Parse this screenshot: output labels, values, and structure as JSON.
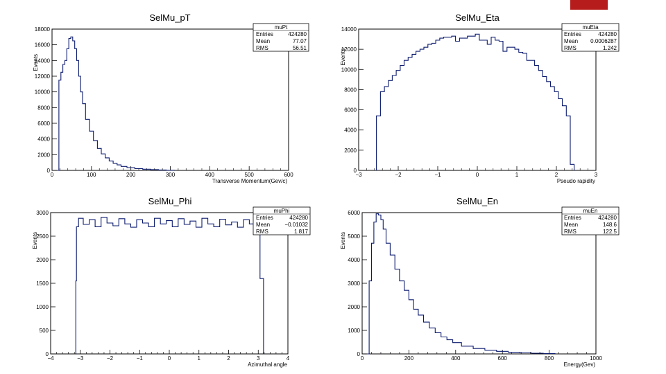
{
  "accent_color": "#b71c1c",
  "line_color": "#0b1a6e",
  "chart_data": [
    {
      "type": "bar",
      "histogram": true,
      "title": "SelMu_pT",
      "xlabel": "Transverse Momentum(Gev/c)",
      "ylabel": "Events",
      "xlim": [
        0,
        600
      ],
      "ylim": [
        0,
        18000
      ],
      "xticks": [
        0,
        100,
        200,
        300,
        400,
        500,
        600
      ],
      "xticklabels": [
        "0",
        "100",
        "200",
        "300",
        "400",
        "500",
        "600"
      ],
      "yticks": [
        0,
        2000,
        4000,
        6000,
        8000,
        10000,
        12000,
        14000,
        16000,
        18000
      ],
      "yticklabels": [
        "0",
        "2000",
        "4000",
        "6000",
        "8000",
        "10000",
        "12000",
        "14000",
        "16000",
        "18000"
      ],
      "stats": {
        "name": "muPt",
        "rows": [
          {
            "label": "Entries",
            "value": "424280"
          },
          {
            "label": "Mean",
            "value": "77.07"
          },
          {
            "label": "RMS",
            "value": "56.51"
          }
        ]
      },
      "x": [
        15,
        20,
        25,
        30,
        35,
        40,
        45,
        50,
        55,
        60,
        65,
        70,
        75,
        80,
        90,
        100,
        110,
        120,
        130,
        140,
        150,
        160,
        170,
        180,
        200,
        220,
        240,
        260,
        280,
        300
      ],
      "values": [
        0,
        11500,
        12500,
        13500,
        14000,
        15500,
        16800,
        17000,
        16500,
        15500,
        14000,
        12000,
        10000,
        8500,
        6500,
        5000,
        3800,
        2800,
        2100,
        1600,
        1200,
        900,
        700,
        500,
        350,
        220,
        150,
        100,
        50,
        20
      ]
    },
    {
      "type": "bar",
      "histogram": true,
      "title": "SelMu_Eta",
      "xlabel": "Pseudo rapidity",
      "ylabel": "Events",
      "xlim": [
        -3,
        3
      ],
      "ylim": [
        0,
        14000
      ],
      "xticks": [
        -3,
        -2,
        -1,
        0,
        1,
        2,
        3
      ],
      "xticklabels": [
        "−3",
        "−2",
        "−1",
        "0",
        "1",
        "2",
        "3"
      ],
      "yticks": [
        0,
        2000,
        4000,
        6000,
        8000,
        10000,
        12000,
        14000
      ],
      "yticklabels": [
        "0",
        "2000",
        "4000",
        "6000",
        "8000",
        "10000",
        "12000",
        "14000"
      ],
      "stats": {
        "name": "muEta",
        "rows": [
          {
            "label": "Entries",
            "value": "424280"
          },
          {
            "label": "Mean",
            "value": "0.0006287"
          },
          {
            "label": "RMS",
            "value": "1.242"
          }
        ]
      },
      "x": [
        -2.5,
        -2.4,
        -2.3,
        -2.2,
        -2.1,
        -2.0,
        -1.9,
        -1.8,
        -1.7,
        -1.6,
        -1.5,
        -1.4,
        -1.3,
        -1.2,
        -1.1,
        -1.0,
        -0.9,
        -0.8,
        -0.7,
        -0.6,
        -0.5,
        -0.4,
        -0.3,
        -0.2,
        -0.1,
        0.0,
        0.1,
        0.2,
        0.3,
        0.4,
        0.5,
        0.6,
        0.7,
        0.8,
        0.9,
        1.0,
        1.1,
        1.2,
        1.3,
        1.4,
        1.5,
        1.6,
        1.7,
        1.8,
        1.9,
        2.0,
        2.1,
        2.2,
        2.3,
        2.4
      ],
      "values": [
        5400,
        7800,
        8300,
        8900,
        9400,
        9900,
        10400,
        10900,
        11200,
        11500,
        11800,
        12000,
        12200,
        12500,
        12600,
        12900,
        13100,
        13200,
        13200,
        13300,
        12800,
        13100,
        13100,
        13300,
        13300,
        13500,
        12900,
        12900,
        12500,
        13200,
        12900,
        12800,
        11800,
        12200,
        12200,
        12000,
        11700,
        11600,
        10900,
        10900,
        10400,
        9900,
        9300,
        8800,
        8300,
        7800,
        7100,
        6400,
        5400,
        600
      ]
    },
    {
      "type": "bar",
      "histogram": true,
      "title": "SelMu_Phi",
      "xlabel": "Azimuthal angle",
      "ylabel": "Events",
      "xlim": [
        -4,
        4
      ],
      "ylim": [
        0,
        3000
      ],
      "xticks": [
        -4,
        -3,
        -2,
        -1,
        0,
        1,
        2,
        3,
        4
      ],
      "xticklabels": [
        "−4",
        "−3",
        "−2",
        "−1",
        "0",
        "1",
        "2",
        "3",
        "4"
      ],
      "yticks": [
        0,
        500,
        1000,
        1500,
        2000,
        2500,
        3000
      ],
      "yticklabels": [
        "0",
        "500",
        "1000",
        "1500",
        "2000",
        "2500",
        "3000"
      ],
      "stats": {
        "name": "muPhi",
        "rows": [
          {
            "label": "Entries",
            "value": "424280"
          },
          {
            "label": "Mean",
            "value": "−0.01032"
          },
          {
            "label": "RMS",
            "value": "1.817"
          }
        ]
      },
      "x": [
        -3.14,
        -3.12,
        -3.0,
        -2.8,
        -2.6,
        -2.4,
        -2.2,
        -2.0,
        -1.8,
        -1.6,
        -1.4,
        -1.2,
        -1.0,
        -0.8,
        -0.6,
        -0.4,
        -0.2,
        0.0,
        0.2,
        0.4,
        0.6,
        0.8,
        1.0,
        1.2,
        1.4,
        1.6,
        1.8,
        2.0,
        2.2,
        2.4,
        2.6,
        2.8,
        3.0,
        3.12
      ],
      "values": [
        1550,
        2700,
        2880,
        2750,
        2850,
        2700,
        2900,
        2780,
        2720,
        2870,
        2760,
        2690,
        2850,
        2780,
        2700,
        2880,
        2760,
        2830,
        2700,
        2870,
        2750,
        2820,
        2690,
        2880,
        2760,
        2700,
        2860,
        2740,
        2800,
        2690,
        2850,
        2760,
        2880,
        1600
      ]
    },
    {
      "type": "bar",
      "histogram": true,
      "title": "SelMu_En",
      "xlabel": "Energy(Gev)",
      "ylabel": "Events",
      "xlim": [
        0,
        1000
      ],
      "ylim": [
        0,
        6000
      ],
      "xticks": [
        0,
        200,
        400,
        600,
        800,
        1000
      ],
      "xticklabels": [
        "0",
        "200",
        "400",
        "600",
        "800",
        "1000"
      ],
      "yticks": [
        0,
        1000,
        2000,
        3000,
        4000,
        5000,
        6000
      ],
      "yticklabels": [
        "0",
        "1000",
        "2000",
        "3000",
        "4000",
        "5000",
        "6000"
      ],
      "stats": {
        "name": "muEn",
        "rows": [
          {
            "label": "Entries",
            "value": "424280"
          },
          {
            "label": "Mean",
            "value": "148.6"
          },
          {
            "label": "RMS",
            "value": "122.5"
          }
        ]
      },
      "x": [
        25,
        35,
        45,
        55,
        65,
        75,
        85,
        95,
        110,
        130,
        150,
        170,
        190,
        210,
        230,
        250,
        275,
        300,
        325,
        350,
        375,
        400,
        450,
        500,
        550,
        600,
        650,
        700,
        750,
        800
      ],
      "values": [
        0,
        3100,
        4700,
        5600,
        5950,
        5900,
        5700,
        5300,
        4700,
        4200,
        3600,
        3100,
        2700,
        2300,
        1900,
        1650,
        1350,
        1100,
        900,
        720,
        600,
        480,
        330,
        230,
        160,
        110,
        70,
        45,
        30,
        15
      ]
    }
  ]
}
